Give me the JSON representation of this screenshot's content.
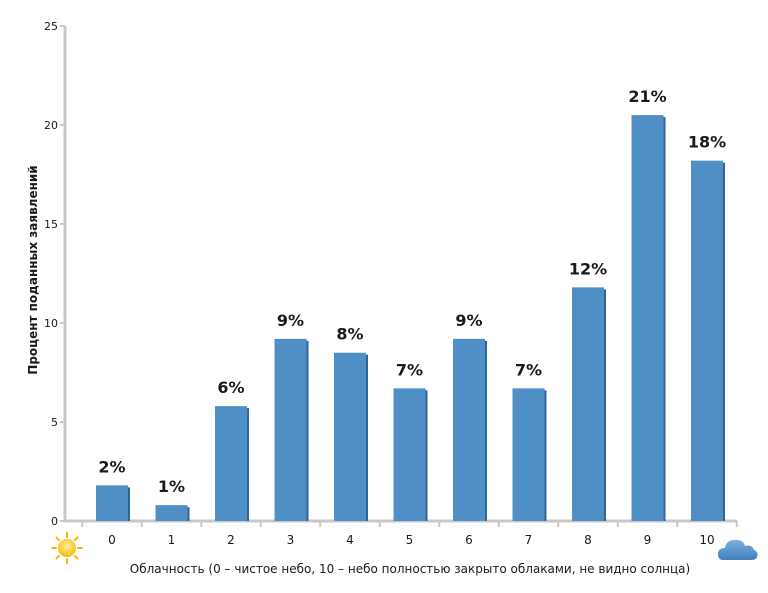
{
  "chart_data": {
    "type": "bar",
    "categories": [
      "0",
      "1",
      "2",
      "3",
      "4",
      "5",
      "6",
      "7",
      "8",
      "9",
      "10"
    ],
    "values": [
      1.8,
      0.8,
      5.8,
      9.2,
      8.5,
      6.7,
      9.2,
      6.7,
      11.8,
      20.5,
      18.2
    ],
    "data_labels": [
      "2%",
      "1%",
      "6%",
      "9%",
      "8%",
      "7%",
      "9%",
      "7%",
      "12%",
      "21%",
      "18%"
    ],
    "title": "",
    "xlabel": "Облачность (0 – чистое небо, 10 – небо полностью закрыто облаками, не видно солнца)",
    "ylabel": "Процент поданных заявлений",
    "ylim": [
      0,
      25
    ],
    "yticks": [
      "0",
      "5",
      "10",
      "15",
      "20",
      "25"
    ],
    "grid": false,
    "bar_color": "#4f8fc6",
    "icons": {
      "left": "sun-icon",
      "right": "cloud-icon"
    }
  }
}
